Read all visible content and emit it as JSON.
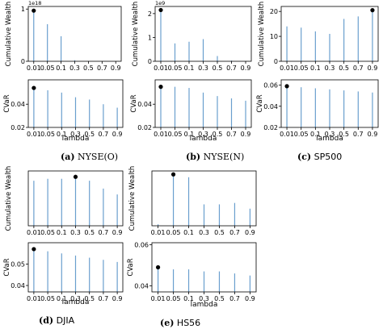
{
  "charts": [
    {
      "id": "nyse_o",
      "caption_letter": "(a)",
      "caption_name": "NYSE(O)",
      "top": {
        "ylabel": "Cumulative Wealth",
        "exponent": "1e18",
        "ylim": [
          0,
          1.05
        ],
        "yticks": [
          {
            "v": 0,
            "l": "0"
          },
          {
            "v": 1,
            "l": "1"
          }
        ],
        "values": [
          0.97,
          0.71,
          0.48,
          0.02,
          0.005,
          0.003,
          0.002
        ],
        "best": 0
      },
      "bottom": {
        "ylabel": "CVaR",
        "ylim": [
          0.02,
          0.061
        ],
        "yticks": [
          {
            "v": 0.02,
            "l": "0.02"
          },
          {
            "v": 0.04,
            "l": "0.04"
          }
        ],
        "values": [
          0.054,
          0.052,
          0.05,
          0.046,
          0.044,
          0.04,
          0.037
        ],
        "best": 0
      }
    },
    {
      "id": "nyse_n",
      "caption_letter": "(b)",
      "caption_name": "NYSE(N)",
      "top": {
        "ylabel": "Cumulative Wealth",
        "exponent": "1e9",
        "ylim": [
          0,
          2.3
        ],
        "yticks": [
          {
            "v": 0,
            "l": "0"
          },
          {
            "v": 1,
            "l": "1"
          },
          {
            "v": 2,
            "l": "2"
          }
        ],
        "values": [
          2.15,
          0.75,
          0.82,
          0.93,
          0.22,
          0.03,
          0.01
        ],
        "best": 0
      },
      "bottom": {
        "ylabel": "CVaR",
        "ylim": [
          0.02,
          0.061
        ],
        "yticks": [
          {
            "v": 0.02,
            "l": "0.02"
          },
          {
            "v": 0.04,
            "l": "0.04"
          }
        ],
        "values": [
          0.055,
          0.055,
          0.054,
          0.05,
          0.047,
          0.045,
          0.043
        ],
        "best": 0
      }
    },
    {
      "id": "sp500",
      "caption_letter": "(c)",
      "caption_name": "SP500",
      "top": {
        "ylabel": "Cumulative Wealth",
        "exponent": "",
        "ylim": [
          0,
          22
        ],
        "yticks": [
          {
            "v": 0,
            "l": "0"
          },
          {
            "v": 10,
            "l": "10"
          },
          {
            "v": 20,
            "l": "20"
          }
        ],
        "values": [
          14,
          13.5,
          12,
          11,
          17,
          18,
          20.5
        ],
        "best": 6
      },
      "bottom": {
        "ylabel": "CVaR",
        "ylim": [
          0.02,
          0.065
        ],
        "yticks": [
          {
            "v": 0.02,
            "l": "0.02"
          },
          {
            "v": 0.04,
            "l": "0.04"
          },
          {
            "v": 0.06,
            "l": "0.06"
          }
        ],
        "values": [
          0.059,
          0.058,
          0.057,
          0.056,
          0.055,
          0.054,
          0.053
        ],
        "best": 0
      }
    },
    {
      "id": "djia",
      "caption_letter": "(d)",
      "caption_name": "DJIA",
      "top": {
        "ylabel": "Cumulative Wealth",
        "exponent": "",
        "ylim": [
          0,
          2.8
        ],
        "yticks": [],
        "values": [
          2.3,
          2.4,
          2.4,
          2.5,
          2.3,
          1.9,
          1.6
        ],
        "best": 3
      },
      "bottom": {
        "ylabel": "CVaR",
        "ylim": [
          0.037,
          0.06
        ],
        "yticks": [
          {
            "v": 0.04,
            "l": "0.04"
          },
          {
            "v": 0.05,
            "l": "0.05"
          }
        ],
        "values": [
          0.057,
          0.056,
          0.055,
          0.054,
          0.053,
          0.052,
          0.051
        ],
        "best": 0
      }
    },
    {
      "id": "hs56",
      "caption_letter": "(e)",
      "caption_name": "HS56",
      "top": {
        "ylabel": "Cumulative Wealth",
        "exponent": "",
        "ylim": [
          0,
          1.92
        ],
        "yticks": [],
        "values": [
          0.05,
          1.8,
          1.7,
          0.75,
          0.75,
          0.8,
          0.6
        ],
        "best": 1
      },
      "bottom": {
        "ylabel": "CVaR",
        "ylim": [
          0.037,
          0.061
        ],
        "yticks": [
          {
            "v": 0.04,
            "l": "0.04"
          },
          {
            "v": 0.06,
            "l": "0.06"
          }
        ],
        "values": [
          0.049,
          0.048,
          0.048,
          0.047,
          0.047,
          0.046,
          0.045
        ],
        "best": 0
      }
    }
  ],
  "xticks": [
    "0.01",
    "0.05",
    "0.1",
    "0.3",
    "0.5",
    "0.7",
    "0.9"
  ],
  "xlabel": "lambda",
  "colors": {
    "stem": "#6a9fce",
    "marker": "#000000"
  },
  "chart_data": [
    {
      "type": "bar",
      "title": "(a) NYSE(O) - Cumulative Wealth",
      "ylabel": "Cumulative Wealth (1e18)",
      "xlabel": "lambda",
      "categories": [
        "0.01",
        "0.05",
        "0.1",
        "0.3",
        "0.5",
        "0.7",
        "0.9"
      ],
      "values": [
        0.97,
        0.71,
        0.48,
        0.02,
        0.005,
        0.003,
        0.002
      ]
    },
    {
      "type": "bar",
      "title": "(a) NYSE(O) - CVaR",
      "ylabel": "CVaR",
      "xlabel": "lambda",
      "categories": [
        "0.01",
        "0.05",
        "0.1",
        "0.3",
        "0.5",
        "0.7",
        "0.9"
      ],
      "values": [
        0.054,
        0.052,
        0.05,
        0.046,
        0.044,
        0.04,
        0.037
      ]
    },
    {
      "type": "bar",
      "title": "(b) NYSE(N) - Cumulative Wealth",
      "ylabel": "Cumulative Wealth (1e9)",
      "xlabel": "lambda",
      "categories": [
        "0.01",
        "0.05",
        "0.1",
        "0.3",
        "0.5",
        "0.7",
        "0.9"
      ],
      "values": [
        2.15,
        0.75,
        0.82,
        0.93,
        0.22,
        0.03,
        0.01
      ]
    },
    {
      "type": "bar",
      "title": "(b) NYSE(N) - CVaR",
      "ylabel": "CVaR",
      "xlabel": "lambda",
      "categories": [
        "0.01",
        "0.05",
        "0.1",
        "0.3",
        "0.5",
        "0.7",
        "0.9"
      ],
      "values": [
        0.055,
        0.055,
        0.054,
        0.05,
        0.047,
        0.045,
        0.043
      ]
    },
    {
      "type": "bar",
      "title": "(c) SP500 - Cumulative Wealth",
      "ylabel": "Cumulative Wealth",
      "xlabel": "lambda",
      "categories": [
        "0.01",
        "0.05",
        "0.1",
        "0.3",
        "0.5",
        "0.7",
        "0.9"
      ],
      "values": [
        14,
        13.5,
        12,
        11,
        17,
        18,
        20.5
      ]
    },
    {
      "type": "bar",
      "title": "(c) SP500 - CVaR",
      "ylabel": "CVaR",
      "xlabel": "lambda",
      "categories": [
        "0.01",
        "0.05",
        "0.1",
        "0.3",
        "0.5",
        "0.7",
        "0.9"
      ],
      "values": [
        0.059,
        0.058,
        0.057,
        0.056,
        0.055,
        0.054,
        0.053
      ]
    },
    {
      "type": "bar",
      "title": "(d) DJIA - Cumulative Wealth",
      "ylabel": "Cumulative Wealth",
      "xlabel": "lambda",
      "categories": [
        "0.01",
        "0.05",
        "0.1",
        "0.3",
        "0.5",
        "0.7",
        "0.9"
      ],
      "values": [
        2.3,
        2.4,
        2.4,
        2.5,
        2.3,
        1.9,
        1.6
      ]
    },
    {
      "type": "bar",
      "title": "(d) DJIA - CVaR",
      "ylabel": "CVaR",
      "xlabel": "lambda",
      "categories": [
        "0.01",
        "0.05",
        "0.1",
        "0.3",
        "0.5",
        "0.7",
        "0.9"
      ],
      "values": [
        0.057,
        0.056,
        0.055,
        0.054,
        0.053,
        0.052,
        0.051
      ]
    },
    {
      "type": "bar",
      "title": "(e) HS56 - Cumulative Wealth",
      "ylabel": "Cumulative Wealth",
      "xlabel": "lambda",
      "categories": [
        "0.01",
        "0.05",
        "0.1",
        "0.3",
        "0.5",
        "0.7",
        "0.9"
      ],
      "values": [
        0.05,
        1.8,
        1.7,
        0.75,
        0.75,
        0.8,
        0.6
      ]
    },
    {
      "type": "bar",
      "title": "(e) HS56 - CVaR",
      "ylabel": "CVaR",
      "xlabel": "lambda",
      "categories": [
        "0.01",
        "0.05",
        "0.1",
        "0.3",
        "0.5",
        "0.7",
        "0.9"
      ],
      "values": [
        0.049,
        0.048,
        0.048,
        0.047,
        0.047,
        0.046,
        0.045
      ]
    }
  ]
}
